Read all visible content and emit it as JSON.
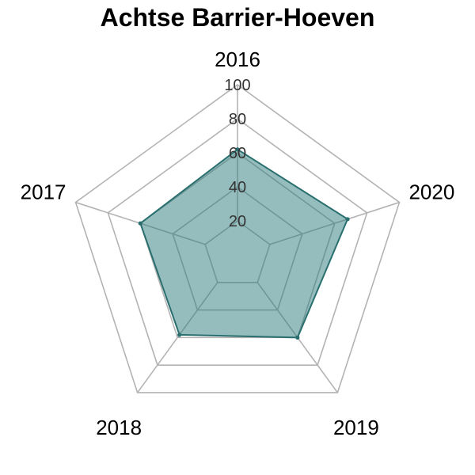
{
  "chart_data": {
    "type": "radar",
    "title": "Achtse Barrier-Hoeven",
    "categories": [
      "2016",
      "2020",
      "2019",
      "2018",
      "2017"
    ],
    "series": [
      {
        "values": [
          62,
          68,
          60,
          58,
          60
        ],
        "fill_color": "#2e7b7b",
        "fill_opacity": 0.5,
        "line_color": "#2a6f6f"
      }
    ],
    "rlim": [
      0,
      100
    ],
    "rticks": [
      20,
      40,
      60,
      80,
      100
    ],
    "rtick_labels": [
      "20",
      "40",
      "60",
      "80",
      "100"
    ],
    "grid": true,
    "grid_color": "#b3b3b3"
  }
}
